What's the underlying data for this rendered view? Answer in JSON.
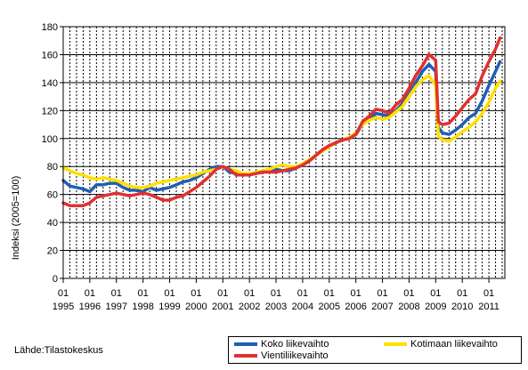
{
  "chart_data": {
    "type": "line",
    "title": "",
    "xlabel": "",
    "ylabel": "Indeksi (2005=100)",
    "ylim": [
      0,
      180
    ],
    "yticks": [
      0,
      20,
      40,
      60,
      80,
      100,
      120,
      140,
      160,
      180
    ],
    "x_unit": "year",
    "xlim": [
      1995.0,
      2011.6
    ],
    "xticks": [
      {
        "month": "01",
        "year": "1995"
      },
      {
        "month": "01",
        "year": "1996"
      },
      {
        "month": "01",
        "year": "1997"
      },
      {
        "month": "01",
        "year": "1998"
      },
      {
        "month": "01",
        "year": "1999"
      },
      {
        "month": "01",
        "year": "2000"
      },
      {
        "month": "01",
        "year": "2001"
      },
      {
        "month": "01",
        "year": "2002"
      },
      {
        "month": "01",
        "year": "2003"
      },
      {
        "month": "01",
        "year": "2004"
      },
      {
        "month": "01",
        "year": "2005"
      },
      {
        "month": "01",
        "year": "2006"
      },
      {
        "month": "01",
        "year": "2007"
      },
      {
        "month": "01",
        "year": "2008"
      },
      {
        "month": "01",
        "year": "2009"
      },
      {
        "month": "01",
        "year": "2010"
      },
      {
        "month": "01",
        "year": "2011"
      }
    ],
    "grid": "vertical dashed, horizontal solid",
    "legend_position": "bottom-right",
    "source_note": "Lähde:Tilastokeskus",
    "series": [
      {
        "name": "Koko liikevaihto",
        "color": "#1f5fb4",
        "points": [
          [
            1995.0,
            70
          ],
          [
            1995.25,
            66
          ],
          [
            1995.5,
            65
          ],
          [
            1995.75,
            64
          ],
          [
            1996.0,
            62
          ],
          [
            1996.25,
            67
          ],
          [
            1996.5,
            67
          ],
          [
            1996.75,
            68
          ],
          [
            1997.0,
            68
          ],
          [
            1997.25,
            65
          ],
          [
            1997.5,
            63
          ],
          [
            1997.75,
            63
          ],
          [
            1998.0,
            62
          ],
          [
            1998.25,
            65
          ],
          [
            1998.5,
            63
          ],
          [
            1998.75,
            64
          ],
          [
            1999.0,
            65
          ],
          [
            1999.25,
            67
          ],
          [
            1999.5,
            69
          ],
          [
            1999.75,
            70
          ],
          [
            2000.0,
            72
          ],
          [
            2000.25,
            75
          ],
          [
            2000.5,
            78
          ],
          [
            2000.75,
            80
          ],
          [
            2001.0,
            80
          ],
          [
            2001.25,
            76
          ],
          [
            2001.5,
            75
          ],
          [
            2001.75,
            74
          ],
          [
            2002.0,
            74
          ],
          [
            2002.25,
            75
          ],
          [
            2002.5,
            76
          ],
          [
            2002.75,
            77
          ],
          [
            2003.0,
            78
          ],
          [
            2003.25,
            77
          ],
          [
            2003.5,
            77
          ],
          [
            2003.75,
            79
          ],
          [
            2004.0,
            81
          ],
          [
            2004.25,
            84
          ],
          [
            2004.5,
            88
          ],
          [
            2004.75,
            92
          ],
          [
            2005.0,
            95
          ],
          [
            2005.25,
            97
          ],
          [
            2005.5,
            99
          ],
          [
            2005.75,
            100
          ],
          [
            2006.0,
            103
          ],
          [
            2006.25,
            110
          ],
          [
            2006.5,
            114
          ],
          [
            2006.75,
            118
          ],
          [
            2007.0,
            117
          ],
          [
            2007.25,
            116
          ],
          [
            2007.5,
            120
          ],
          [
            2007.75,
            125
          ],
          [
            2008.0,
            132
          ],
          [
            2008.25,
            140
          ],
          [
            2008.5,
            148
          ],
          [
            2008.75,
            153
          ],
          [
            2009.0,
            148
          ],
          [
            2009.1,
            108
          ],
          [
            2009.25,
            104
          ],
          [
            2009.5,
            103
          ],
          [
            2009.75,
            106
          ],
          [
            2010.0,
            110
          ],
          [
            2010.25,
            115
          ],
          [
            2010.5,
            118
          ],
          [
            2010.75,
            127
          ],
          [
            2011.0,
            138
          ],
          [
            2011.25,
            148
          ],
          [
            2011.42,
            155
          ]
        ]
      },
      {
        "name": "Kotimaan liikevaihto",
        "color": "#ffdf00",
        "points": [
          [
            1995.0,
            79
          ],
          [
            1995.25,
            77
          ],
          [
            1995.5,
            75
          ],
          [
            1995.75,
            74
          ],
          [
            1996.0,
            72
          ],
          [
            1996.25,
            71
          ],
          [
            1996.5,
            72
          ],
          [
            1996.75,
            71
          ],
          [
            1997.0,
            70
          ],
          [
            1997.25,
            68
          ],
          [
            1997.5,
            66
          ],
          [
            1997.75,
            65
          ],
          [
            1998.0,
            65
          ],
          [
            1998.25,
            66
          ],
          [
            1998.5,
            68
          ],
          [
            1998.75,
            69
          ],
          [
            1999.0,
            70
          ],
          [
            1999.25,
            71
          ],
          [
            1999.5,
            72
          ],
          [
            1999.75,
            73
          ],
          [
            2000.0,
            74
          ],
          [
            2000.25,
            76
          ],
          [
            2000.5,
            77
          ],
          [
            2000.75,
            78
          ],
          [
            2001.0,
            80
          ],
          [
            2001.25,
            78
          ],
          [
            2001.5,
            77
          ],
          [
            2001.75,
            75
          ],
          [
            2002.0,
            75
          ],
          [
            2002.25,
            76
          ],
          [
            2002.5,
            77
          ],
          [
            2002.75,
            78
          ],
          [
            2003.0,
            80
          ],
          [
            2003.25,
            81
          ],
          [
            2003.5,
            80
          ],
          [
            2003.75,
            80
          ],
          [
            2004.0,
            82
          ],
          [
            2004.25,
            85
          ],
          [
            2004.5,
            88
          ],
          [
            2004.75,
            91
          ],
          [
            2005.0,
            94
          ],
          [
            2005.25,
            97
          ],
          [
            2005.5,
            99
          ],
          [
            2005.75,
            101
          ],
          [
            2006.0,
            104
          ],
          [
            2006.25,
            110
          ],
          [
            2006.5,
            113
          ],
          [
            2006.75,
            115
          ],
          [
            2007.0,
            114
          ],
          [
            2007.25,
            115
          ],
          [
            2007.5,
            119
          ],
          [
            2007.75,
            123
          ],
          [
            2008.0,
            130
          ],
          [
            2008.25,
            137
          ],
          [
            2008.5,
            142
          ],
          [
            2008.75,
            145
          ],
          [
            2009.0,
            138
          ],
          [
            2009.1,
            102
          ],
          [
            2009.25,
            99
          ],
          [
            2009.5,
            98
          ],
          [
            2009.75,
            101
          ],
          [
            2010.0,
            105
          ],
          [
            2010.25,
            108
          ],
          [
            2010.5,
            112
          ],
          [
            2010.75,
            118
          ],
          [
            2011.0,
            126
          ],
          [
            2011.25,
            136
          ],
          [
            2011.42,
            141
          ]
        ]
      },
      {
        "name": "Vientiliikevaihto",
        "color": "#e03030",
        "points": [
          [
            1995.0,
            54
          ],
          [
            1995.25,
            52
          ],
          [
            1995.5,
            52
          ],
          [
            1995.75,
            52
          ],
          [
            1996.0,
            54
          ],
          [
            1996.25,
            58
          ],
          [
            1996.5,
            59
          ],
          [
            1996.75,
            60
          ],
          [
            1997.0,
            61
          ],
          [
            1997.25,
            60
          ],
          [
            1997.5,
            59
          ],
          [
            1997.75,
            60
          ],
          [
            1998.0,
            61
          ],
          [
            1998.25,
            60
          ],
          [
            1998.5,
            58
          ],
          [
            1998.75,
            56
          ],
          [
            1999.0,
            56
          ],
          [
            1999.25,
            58
          ],
          [
            1999.5,
            59
          ],
          [
            1999.75,
            62
          ],
          [
            2000.0,
            65
          ],
          [
            2000.25,
            69
          ],
          [
            2000.5,
            73
          ],
          [
            2000.75,
            78
          ],
          [
            2001.0,
            80
          ],
          [
            2001.25,
            78
          ],
          [
            2001.5,
            74
          ],
          [
            2001.75,
            74
          ],
          [
            2002.0,
            74
          ],
          [
            2002.25,
            75
          ],
          [
            2002.5,
            76
          ],
          [
            2002.75,
            76
          ],
          [
            2003.0,
            76
          ],
          [
            2003.25,
            77
          ],
          [
            2003.5,
            78
          ],
          [
            2003.75,
            79
          ],
          [
            2004.0,
            81
          ],
          [
            2004.25,
            84
          ],
          [
            2004.5,
            88
          ],
          [
            2004.75,
            92
          ],
          [
            2005.0,
            95
          ],
          [
            2005.25,
            97
          ],
          [
            2005.5,
            99
          ],
          [
            2005.75,
            100
          ],
          [
            2006.0,
            103
          ],
          [
            2006.25,
            112
          ],
          [
            2006.5,
            116
          ],
          [
            2006.75,
            121
          ],
          [
            2007.0,
            120
          ],
          [
            2007.25,
            118
          ],
          [
            2007.5,
            124
          ],
          [
            2007.75,
            128
          ],
          [
            2008.0,
            136
          ],
          [
            2008.25,
            145
          ],
          [
            2008.5,
            152
          ],
          [
            2008.75,
            160
          ],
          [
            2009.0,
            156
          ],
          [
            2009.1,
            112
          ],
          [
            2009.25,
            110
          ],
          [
            2009.5,
            111
          ],
          [
            2009.75,
            116
          ],
          [
            2010.0,
            122
          ],
          [
            2010.25,
            128
          ],
          [
            2010.5,
            132
          ],
          [
            2010.75,
            145
          ],
          [
            2011.0,
            155
          ],
          [
            2011.25,
            164
          ],
          [
            2011.42,
            172
          ]
        ]
      }
    ]
  }
}
